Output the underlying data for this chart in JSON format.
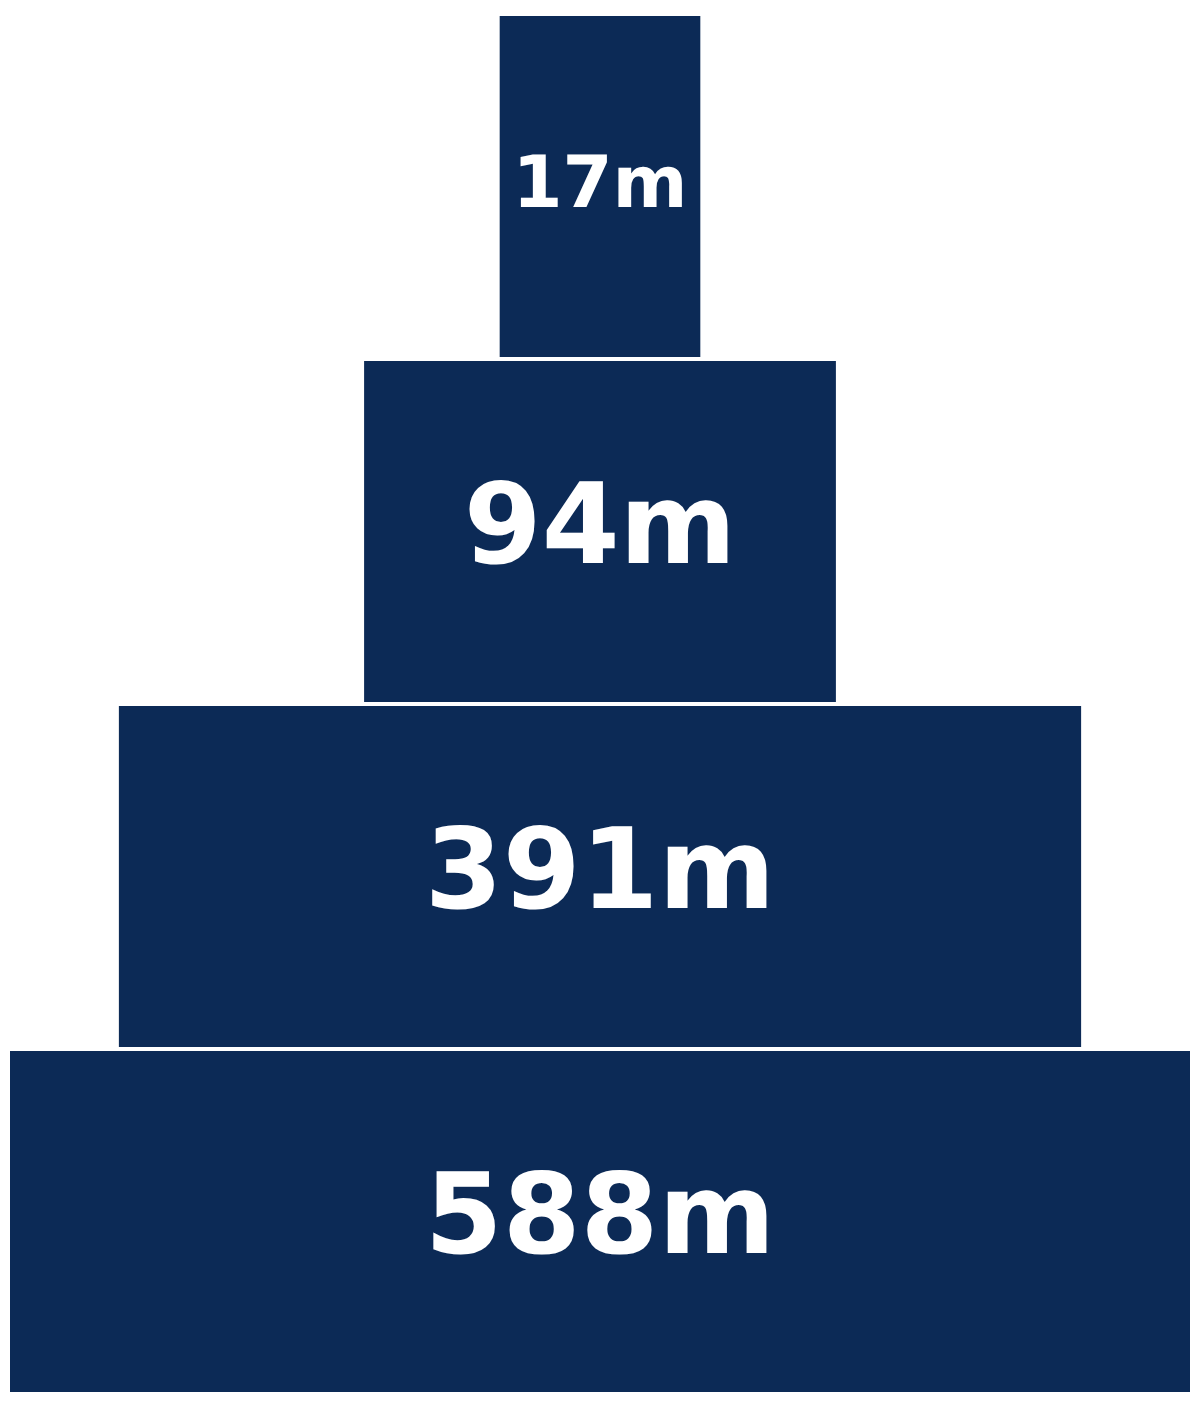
{
  "chart_data": {
    "type": "other",
    "values": [
      17,
      94,
      391,
      588
    ],
    "value_labels": [
      "17m",
      "94m",
      "391m",
      "588m"
    ],
    "color": "#0c2a56"
  }
}
